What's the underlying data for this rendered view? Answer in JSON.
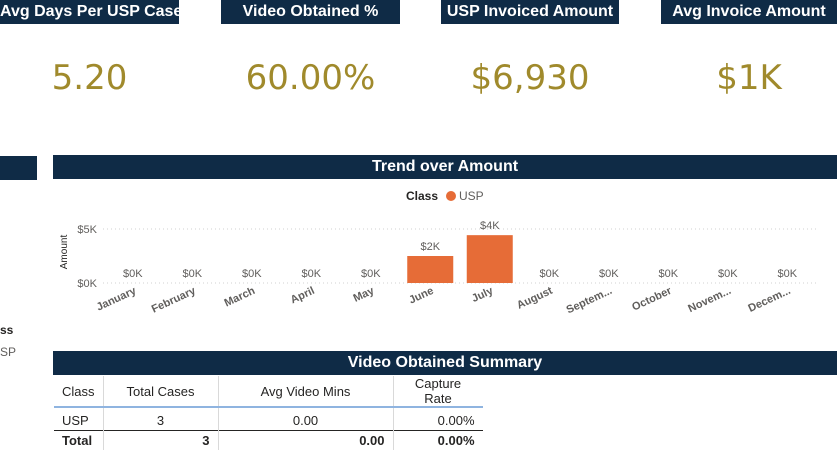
{
  "kpis": [
    {
      "title": "Avg Days Per USP Case",
      "value": "5.20"
    },
    {
      "title": "Video Obtained %",
      "value": "60.00%"
    },
    {
      "title": "USP Invoiced Amount",
      "value": "$6,930"
    },
    {
      "title": "Avg Invoice Amount",
      "value": "$1K"
    }
  ],
  "side_legend": {
    "title": "ss",
    "item": "SP"
  },
  "trend": {
    "banner": "Trend over Amount",
    "legend_title": "Class",
    "legend_item": "USP"
  },
  "chart_data": {
    "type": "bar",
    "title": "Trend over Amount",
    "ylabel": "Amount",
    "xlabel": "",
    "ylim": [
      0,
      5000
    ],
    "yticks": [
      "$0K",
      "$5K"
    ],
    "categories": [
      "January",
      "February",
      "March",
      "April",
      "May",
      "June",
      "July",
      "August",
      "Septem...",
      "October",
      "Novem...",
      "Decem..."
    ],
    "series": [
      {
        "name": "USP",
        "values": [
          0,
          0,
          0,
          0,
          0,
          2500,
          4430,
          0,
          0,
          0,
          0,
          0
        ]
      }
    ],
    "data_labels": [
      "$0K",
      "$0K",
      "$0K",
      "$0K",
      "$0K",
      "$2K",
      "$4K",
      "$0K",
      "$0K",
      "$0K",
      "$0K",
      "$0K"
    ],
    "bar_color": "#e66c37",
    "legend_placement": "top-center",
    "grid": true
  },
  "summary": {
    "banner": "Video Obtained Summary",
    "headers": [
      "Class",
      "Total Cases",
      "Avg Video Mins",
      "Capture Rate"
    ],
    "rows": [
      [
        "USP",
        "3",
        "0.00",
        "0.00%"
      ]
    ],
    "total": [
      "Total",
      "3",
      "0.00",
      "0.00%"
    ]
  },
  "colors": {
    "header_bg": "#0f2b46",
    "kpi_value": "#a08a2c",
    "bar": "#e66c37"
  }
}
